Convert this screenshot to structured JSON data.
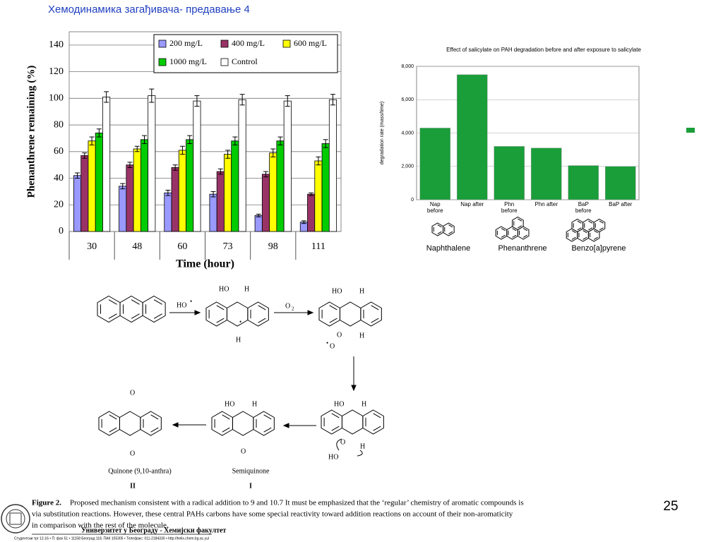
{
  "header": {
    "title": "Хемодинамика загађивача- предавање 4"
  },
  "chart_data": [
    {
      "type": "bar",
      "categories": [
        "30",
        "48",
        "60",
        "73",
        "98",
        "111"
      ],
      "series": [
        {
          "name": "200 mg/L",
          "color": "#9999ff",
          "values": [
            42,
            34,
            29,
            28,
            12,
            7
          ],
          "errors": [
            2,
            2,
            2,
            2,
            1,
            1
          ]
        },
        {
          "name": "400 mg/L",
          "color": "#993366",
          "values": [
            57,
            50,
            48,
            45,
            43,
            28
          ],
          "errors": [
            2,
            2,
            2,
            2,
            2,
            1
          ]
        },
        {
          "name": "600 mg/L",
          "color": "#ffff00",
          "values": [
            68,
            62,
            61,
            58,
            59,
            53
          ],
          "errors": [
            3,
            2,
            3,
            3,
            3,
            3
          ]
        },
        {
          "name": "1000 mg/L",
          "color": "#00cc00",
          "values": [
            74,
            69,
            69,
            68,
            68,
            66
          ],
          "errors": [
            3,
            3,
            3,
            3,
            3,
            3
          ]
        },
        {
          "name": "Control",
          "color": "#ffffff",
          "values": [
            101,
            102,
            98,
            99,
            98,
            99
          ],
          "errors": [
            4,
            5,
            4,
            4,
            4,
            4
          ]
        }
      ],
      "xlabel": "Time (hour)",
      "ylabel": "Phenanthrene remaining (%)",
      "ylim": [
        0,
        150
      ],
      "yticks": [
        0,
        20,
        40,
        60,
        80,
        100,
        120,
        140
      ],
      "grid": true,
      "legend": "top-right"
    },
    {
      "type": "bar",
      "title": "Effect of salicylate on PAH degradation before and after exposure to salicylate",
      "categories": [
        "Nap before",
        "Nap after",
        "Phn before",
        "Phn after",
        "BaP before",
        "BaP after"
      ],
      "values": [
        4300,
        7500,
        3200,
        3100,
        2050,
        2000
      ],
      "color": "#1a9e3a",
      "ylabel": "degradation rate (mass/time)",
      "ylim": [
        0,
        8000
      ],
      "yticks": [
        0,
        {
          "value": 2000,
          "label": "2,000"
        },
        {
          "value": 4000,
          "label": "4,000"
        },
        {
          "value": 6000,
          "label": "6,000"
        },
        {
          "value": 8000,
          "label": "8,000"
        }
      ],
      "grid": true,
      "compounds": [
        "Naphthalene",
        "Phenanthrene",
        "Benzo[a]pyrene"
      ]
    }
  ],
  "diagram": {
    "labels": [
      "HO",
      "O",
      "HO",
      "H",
      "H",
      "HO",
      "H",
      "O",
      "O",
      "H",
      "HO",
      "H",
      "O",
      "HO",
      "H",
      "HO",
      "H",
      "O",
      "O",
      "O"
    ],
    "names": [
      "Quinone (9,10-anthra)",
      "Semiquinone"
    ],
    "numbers": [
      "II",
      "I"
    ]
  },
  "caption": {
    "label": "Figure 2.",
    "lines": [
      "Proposed mechanism consistent with a radical addition to 9 and 10.7 It must be emphasized that the ‘regular’ chemistry of aromatic compounds is",
      "via substitution reactions. However, these central PAHs carbons have some special reactivity toward addition reactions on account of their non-aromaticity",
      "in comparison with the rest of the molecule."
    ]
  },
  "footer": {
    "institution": "Универзитет у Београду - Хемијски факултет",
    "address": "Студентски трг 12-16 • П. фах 51 • 11158 Београд 118, ПАК 105305 • Телефакс: 011-2184330 • http://helix.chem.bg.ac.yu/"
  },
  "page_number": "25"
}
